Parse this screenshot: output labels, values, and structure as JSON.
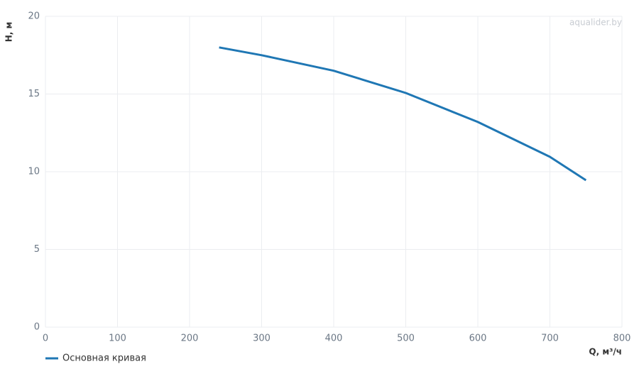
{
  "chart_data": {
    "type": "line",
    "x_label": "Q, м³/ч",
    "y_label": "H, м",
    "watermark": "aqualider.by",
    "x": [
      241,
      300,
      400,
      500,
      600,
      700,
      750
    ],
    "series": [
      {
        "name": "Основная кривая",
        "color": "#1f77b4",
        "values": [
          18,
          17.5,
          16.5,
          15.07,
          13.2,
          10.96,
          9.45
        ]
      }
    ],
    "xlim": [
      0,
      800
    ],
    "xticks": [
      0,
      100,
      200,
      300,
      400,
      500,
      600,
      700,
      800
    ],
    "ylim": [
      0,
      20
    ],
    "yticks": [
      0,
      5,
      10,
      15,
      20
    ],
    "grid": true,
    "legend": "bottom-left"
  }
}
